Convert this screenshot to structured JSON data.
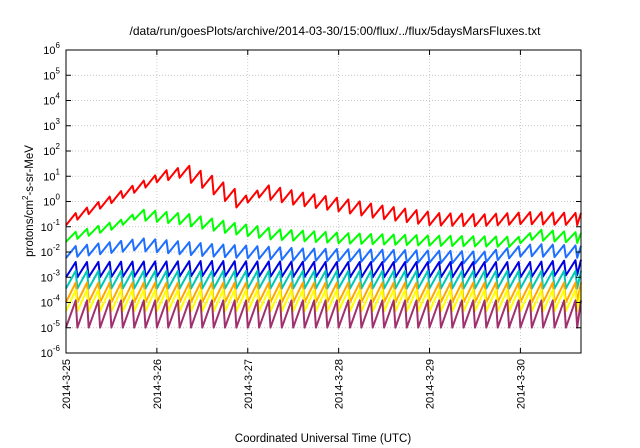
{
  "chart_data": {
    "type": "line",
    "title": "/data/run/goesPlots/archive/2014-03-30/15:00/flux/../flux/5daysMarsFluxes.txt",
    "xlabel": "Coordinated Universal Time (UTC)",
    "ylabel": "protons/cm2-s-sr-MeV",
    "ylabel_parts": {
      "pre": "protons/cm",
      "sup": "2",
      "post": "-s-sr-MeV"
    },
    "yscale": "log",
    "ylim": [
      1e-06,
      1000000.0
    ],
    "xlim": [
      "2014-03-25",
      "2014-03-30T16:00"
    ],
    "grid": true,
    "x_ticks": [
      "2014-3-25",
      "2014-3-26",
      "2014-3-27",
      "2014-3-28",
      "2014-3-29",
      "2014-3-30"
    ],
    "y_ticks": [
      {
        "base": "10",
        "exp": "-6"
      },
      {
        "base": "10",
        "exp": "-5"
      },
      {
        "base": "10",
        "exp": "-4"
      },
      {
        "base": "10",
        "exp": "-3"
      },
      {
        "base": "10",
        "exp": "-2"
      },
      {
        "base": "10",
        "exp": "-1"
      },
      {
        "base": "10",
        "exp": "0"
      },
      {
        "base": "10",
        "exp": "1"
      },
      {
        "base": "10",
        "exp": "2"
      },
      {
        "base": "10",
        "exp": "3"
      },
      {
        "base": "10",
        "exp": "4"
      },
      {
        "base": "10",
        "exp": "5"
      },
      {
        "base": "10",
        "exp": "6"
      }
    ],
    "series": [
      {
        "color": "#ff0000",
        "pattern": "sawtooth",
        "rise": 3,
        "x": [
          "2014-03-25T00:00",
          "2014-03-25T12:00",
          "2014-03-26T00:00",
          "2014-03-26T06:00",
          "2014-03-26T12:00",
          "2014-03-26T21:00",
          "2014-03-27T03:00",
          "2014-03-27T12:00",
          "2014-03-28T00:00",
          "2014-03-28T09:00",
          "2014-03-29T00:00",
          "2014-03-29T12:00",
          "2014-03-30T00:00",
          "2014-03-30T16:00"
        ],
        "y": [
          0.2,
          1.5,
          10,
          15,
          6,
          1,
          2.5,
          1.3,
          0.7,
          0.4,
          0.2,
          0.18,
          0.22,
          0.2
        ]
      },
      {
        "color": "#00ff00",
        "pattern": "sawtooth",
        "rise": 2.5,
        "x": [
          "2014-03-25T00:00",
          "2014-03-25T12:00",
          "2014-03-25T18:00",
          "2014-03-26T06:00",
          "2014-03-26T18:00",
          "2014-03-27T06:00",
          "2014-03-28T00:00",
          "2014-03-29T00:00",
          "2014-03-29T23:00",
          "2014-03-30T01:00",
          "2014-03-30T16:00"
        ],
        "y": [
          0.04,
          0.12,
          0.3,
          0.2,
          0.09,
          0.05,
          0.035,
          0.028,
          0.025,
          0.05,
          0.035
        ]
      },
      {
        "color": "#1e6eff",
        "pattern": "sawtooth",
        "rise": 3,
        "x": [
          "2014-03-25T00:00",
          "2014-03-25T18:00",
          "2014-03-26T12:00",
          "2014-03-27T12:00",
          "2014-03-28T12:00",
          "2014-03-29T12:00",
          "2014-03-30T01:00",
          "2014-03-30T16:00"
        ],
        "y": [
          0.01,
          0.02,
          0.012,
          0.008,
          0.007,
          0.006,
          0.012,
          0.01
        ]
      },
      {
        "color": "#0000e0",
        "pattern": "sawtooth",
        "rise": 4,
        "x": [
          "2014-03-25T00:00",
          "2014-03-26T12:00",
          "2014-03-28T00:00",
          "2014-03-30T00:00",
          "2014-03-30T16:00"
        ],
        "y": [
          0.002,
          0.0022,
          0.002,
          0.002,
          0.0025
        ]
      },
      {
        "color": "#00c8b4",
        "pattern": "sawtooth",
        "rise": 5,
        "x": [
          "2014-03-25T00:00",
          "2014-03-30T16:00"
        ],
        "y": [
          0.0008,
          0.0008
        ]
      },
      {
        "color": "#ffa500",
        "pattern": "sawtooth",
        "rise": 6,
        "x": [
          "2014-03-25T00:00",
          "2014-03-30T16:00"
        ],
        "y": [
          0.00025,
          0.00025
        ]
      },
      {
        "color": "#ffff00",
        "pattern": "sawtooth",
        "rise": 7,
        "x": [
          "2014-03-25T00:00",
          "2014-03-30T16:00"
        ],
        "y": [
          0.00012,
          0.00012
        ]
      },
      {
        "color": "#a0306e",
        "pattern": "sawtooth",
        "rise": 12,
        "x": [
          "2014-03-25T00:00",
          "2014-03-30T16:00"
        ],
        "y": [
          3.5e-05,
          3.5e-05
        ]
      }
    ]
  }
}
